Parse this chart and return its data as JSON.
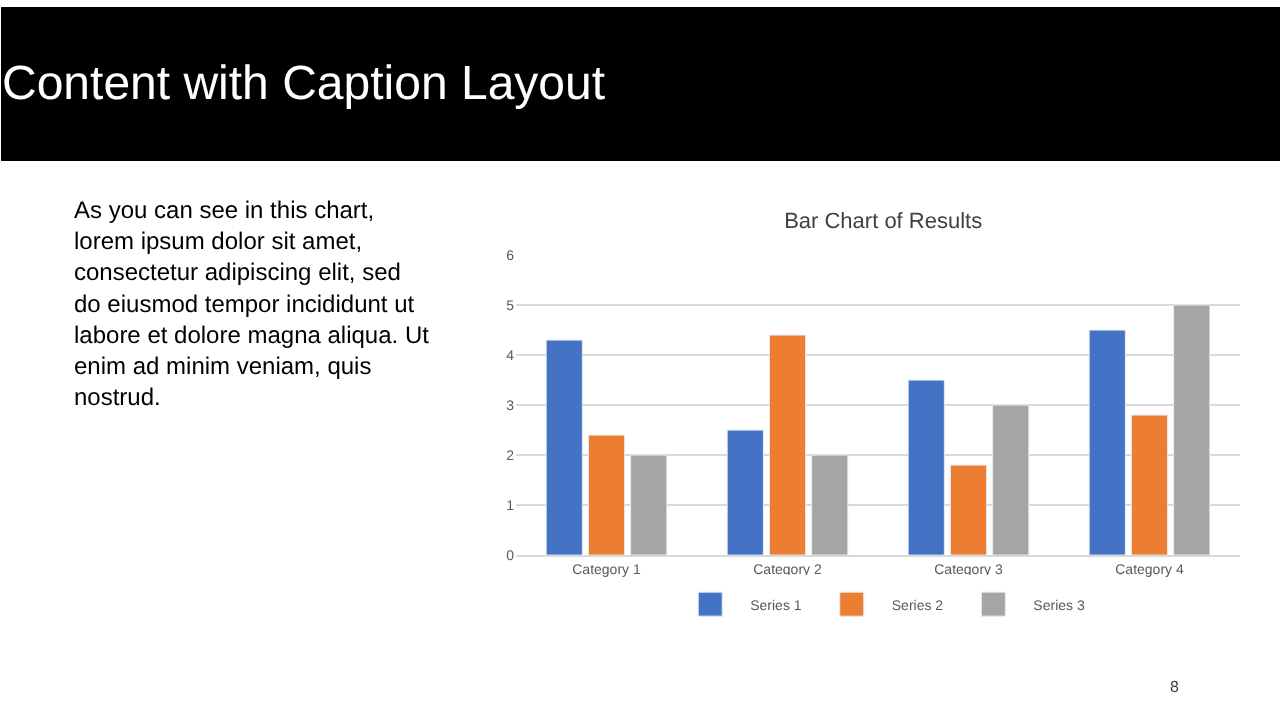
{
  "chart_data": {
    "type": "bar",
    "title": "Bar Chart of Results",
    "categories": [
      "Category 1",
      "Category 2",
      "Category 3",
      "Category 4"
    ],
    "series": [
      {
        "name": "Series 1",
        "color": "#4472c4",
        "values": [
          4.3,
          2.5,
          3.5,
          4.5
        ]
      },
      {
        "name": "Series 2",
        "color": "#ed7d31",
        "values": [
          2.4,
          4.4,
          1.8,
          2.8
        ]
      },
      {
        "name": "Series 3",
        "color": "#a5a5a5",
        "values": [
          2,
          2,
          3,
          5
        ]
      }
    ],
    "ylim": [
      0,
      6
    ],
    "yticks": [
      0,
      1,
      2,
      3,
      4,
      5,
      6
    ],
    "grid": "y",
    "legend": "bottom",
    "annotations": [
      "Content with Caption Layout",
      "As you can see in this chart,\nlorem ipsum dolor sit amet,\nconsectetur adipiscing elit, sed\ndo eiusmod tempor incididunt ut\nlabore et dolore magna aliqua. Ut\nenim ad minim veniam, quis\nnostrud.",
      "8"
    ]
  }
}
